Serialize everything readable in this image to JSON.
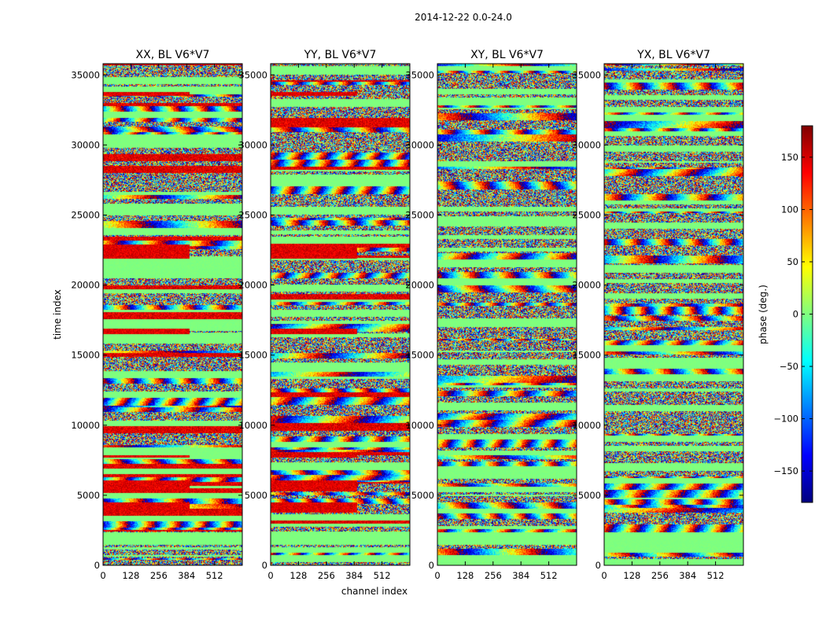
{
  "suptitle": "2014-12-22 0.0-24.0",
  "chart_data": {
    "type": "heatmap",
    "xlabel": "channel index",
    "ylabel": "time index",
    "xlim": [
      0,
      640
    ],
    "ylim": [
      0,
      35800
    ],
    "xticks": [
      0,
      128,
      256,
      384,
      512
    ],
    "yticks": [
      0,
      5000,
      10000,
      15000,
      20000,
      25000,
      30000,
      35000
    ],
    "colorbar": {
      "label": "phase (deg.)",
      "range": [
        -180,
        180
      ],
      "ticks": [
        150,
        100,
        50,
        0,
        -50,
        -100,
        -150
      ],
      "tick_labels": [
        "150",
        "100",
        "50",
        "0",
        "−50",
        "−100",
        "−150"
      ],
      "colormap": "jet",
      "stops": [
        "#00007f",
        "#0000ff",
        "#007fff",
        "#00ffff",
        "#7fff7f",
        "#ffff00",
        "#ff7f00",
        "#ff0000",
        "#7f0000"
      ]
    },
    "panels": [
      {
        "title": "XX, BL V6*V7",
        "corr": "XX"
      },
      {
        "title": "YY, BL V6*V7",
        "corr": "YY"
      },
      {
        "title": "XY, BL V6*V7",
        "corr": "XY"
      },
      {
        "title": "YX, BL V6*V7",
        "corr": "YX"
      }
    ]
  }
}
